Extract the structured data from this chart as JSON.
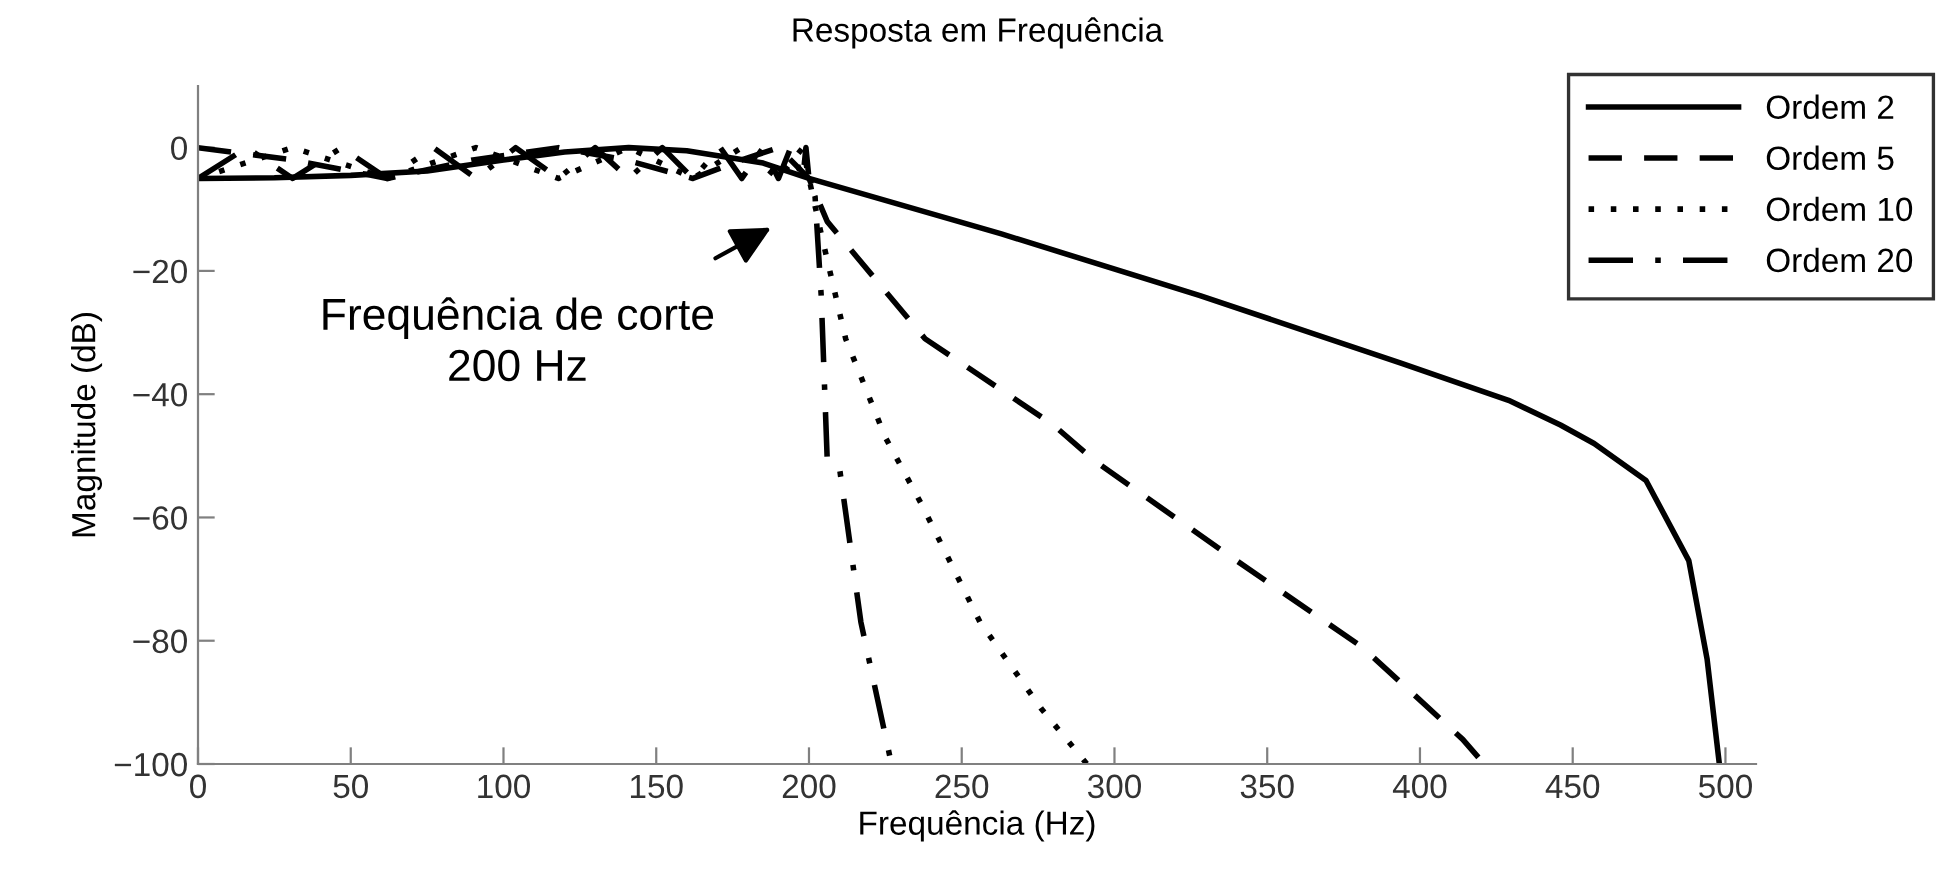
{
  "chart_data": {
    "type": "line",
    "title": "Resposta em Frequência",
    "xlabel": "Frequência (Hz)",
    "ylabel": "Magnitude (dB)",
    "xlim": [
      0,
      510
    ],
    "ylim": [
      -100,
      10
    ],
    "xticks": [
      0,
      50,
      100,
      150,
      200,
      250,
      300,
      350,
      400,
      450,
      500
    ],
    "yticks": [
      {
        "value": 0,
        "label": "0"
      },
      {
        "value": -20,
        "label": "−20"
      },
      {
        "value": -40,
        "label": "−40"
      },
      {
        "value": -60,
        "label": "−60"
      },
      {
        "value": -80,
        "label": "−80"
      },
      {
        "value": -100,
        "label": "−100"
      }
    ],
    "grid": false,
    "legend": "top right",
    "marker": "none",
    "annotations": [
      "Frequência de corte\n200 Hz"
    ],
    "series": [
      {
        "name": "Ordem 2",
        "color": "#000000",
        "line_style": "solid",
        "x": [
          0,
          25,
          50,
          75,
          100,
          120,
          141,
          160,
          185,
          200,
          263,
          328,
          394,
          429,
          446,
          457,
          474,
          488,
          494,
          498
        ],
        "values": [
          -5,
          -4.9,
          -4.5,
          -3.8,
          -2,
          -0.7,
          0,
          -0.5,
          -2.5,
          -5,
          -14,
          -24,
          -35,
          -41,
          -45,
          -48,
          -54,
          -67,
          -83,
          -100
        ]
      },
      {
        "name": "Ordem 5",
        "color": "#000000",
        "line_style": "dashed",
        "x": [
          0,
          31,
          62,
          90,
          118,
          140,
          162,
          178,
          190,
          200,
          206,
          238,
          280,
          294,
          337,
          381,
          414,
          421
        ],
        "values": [
          0,
          -2,
          -5,
          -2,
          0,
          -2,
          -5,
          -2,
          0,
          -5,
          -12,
          -31,
          -45,
          -51,
          -66,
          -81,
          -96,
          -100
        ]
      },
      {
        "name": "Ordem 10",
        "color": "#000000",
        "line_style": "dotted",
        "x": [
          0,
          31,
          62,
          91,
          118,
          141,
          162,
          178,
          190,
          198,
          200,
          204,
          212,
          225,
          237,
          256,
          276,
          291
        ],
        "values": [
          -5,
          0,
          -5,
          0,
          -5,
          0,
          -5,
          0,
          -5,
          0,
          -5,
          -14,
          -31,
          -47,
          -58,
          -77,
          -91,
          -100
        ]
      },
      {
        "name": "Ordem 20",
        "color": "#000000",
        "line_style": "dashdot",
        "x": [
          0,
          16,
          31,
          47,
          62,
          77,
          91,
          104,
          118,
          130,
          141,
          152,
          162,
          171,
          178,
          185,
          190,
          194,
          198,
          199,
          200,
          202,
          204,
          206,
          210,
          217,
          227
        ],
        "values": [
          -5,
          0,
          -5,
          0,
          -5,
          0,
          -5,
          0,
          -5,
          0,
          -5,
          0,
          -5,
          0,
          -5,
          0,
          -5,
          0,
          -5,
          0,
          -5,
          -8,
          -24,
          -51,
          -52,
          -77,
          -100
        ]
      }
    ]
  }
}
